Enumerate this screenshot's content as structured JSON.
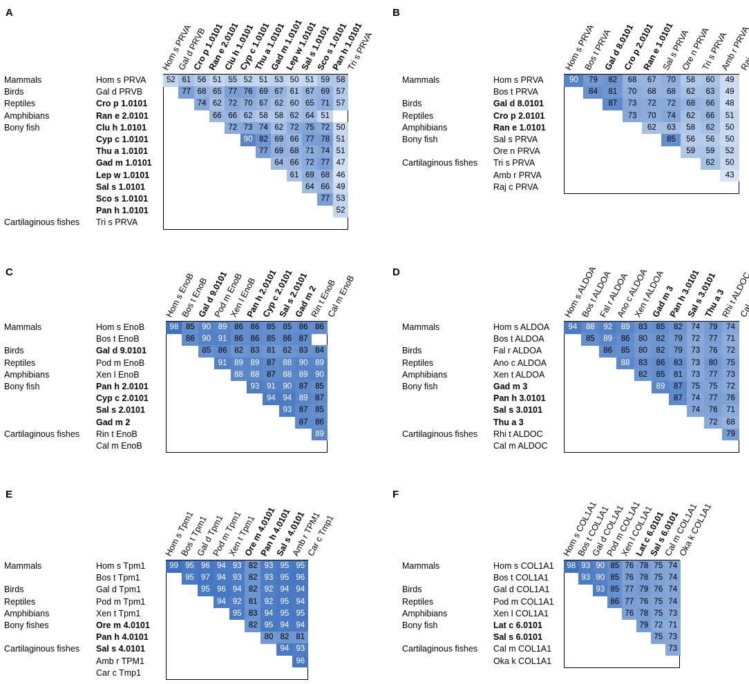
{
  "chart_data": [
    {
      "type": "heatmap",
      "panel": "A",
      "groups": [
        {
          "name": "Mammals",
          "row": 0
        },
        {
          "name": "Birds",
          "row": 1
        },
        {
          "name": "Reptiles",
          "row": 2
        },
        {
          "name": "Amphibians",
          "row": 3
        },
        {
          "name": "Bony fish",
          "row": 4
        },
        {
          "name": "Cartilaginous fishes",
          "row": 12
        }
      ],
      "labels": [
        "Hom s PRVA",
        "Gal d PRVB",
        "Cro p 1.0101",
        "Ran e 2.0101",
        "Clu h 1.0101",
        "Cyp c 1.0101",
        "Thu a 1.0101",
        "Gad m 1.0101",
        "Lep w 1.0101",
        "Sal s 1.0101",
        "Sco s 1.0101",
        "Pan h 1.0101",
        "Tri s PRVA"
      ],
      "bold": [
        false,
        false,
        true,
        true,
        true,
        true,
        true,
        true,
        true,
        true,
        true,
        true,
        false
      ],
      "values": [
        [
          52,
          61,
          56,
          51,
          55,
          52,
          51,
          53,
          50,
          51,
          59,
          58
        ],
        [
          77,
          68,
          65,
          77,
          76,
          69,
          67,
          61,
          67,
          69,
          57
        ],
        [
          74,
          62,
          72,
          70,
          67,
          62,
          60,
          65,
          71,
          57
        ],
        [
          66,
          66,
          62,
          58,
          58,
          62,
          64,
          51
        ],
        [
          72,
          73,
          74,
          62,
          72,
          75,
          72,
          50
        ],
        [
          90,
          82,
          69,
          66,
          77,
          78,
          51
        ],
        [
          77,
          69,
          68,
          71,
          74,
          51
        ],
        [
          64,
          66,
          72,
          77,
          47
        ],
        [
          61,
          69,
          68,
          46
        ],
        [
          64,
          66,
          49
        ],
        [
          77,
          53
        ],
        [
          52
        ]
      ]
    },
    {
      "type": "heatmap",
      "panel": "B",
      "groups": [
        {
          "name": "Mammals",
          "row": 0
        },
        {
          "name": "Birds",
          "row": 2
        },
        {
          "name": "Reptiles",
          "row": 3
        },
        {
          "name": "Amphibians",
          "row": 4
        },
        {
          "name": "Bony fish",
          "row": 5
        },
        {
          "name": "Cartilaginous fishes",
          "row": 7
        }
      ],
      "labels": [
        "Hom s PRVA",
        "Bos t PRVA",
        "Gal d 8.0101",
        "Cro p 2.0101",
        "Ran e 1.0101",
        "Sal s PRVA",
        "Ore n PRVA",
        "Tri s PRVA",
        "Amb r PRVA",
        "Raj c PRVA"
      ],
      "bold": [
        false,
        false,
        true,
        true,
        true,
        false,
        false,
        false,
        false,
        false
      ],
      "values": [
        [
          90,
          79,
          82,
          68,
          67,
          70,
          58,
          60,
          49
        ],
        [
          84,
          81,
          70,
          68,
          68,
          62,
          63,
          49
        ],
        [
          87,
          73,
          72,
          72,
          68,
          66,
          48
        ],
        [
          73,
          70,
          74,
          62,
          66,
          51
        ],
        [
          62,
          63,
          58,
          62,
          50
        ],
        [
          85,
          56,
          56,
          50
        ],
        [
          59,
          59,
          52
        ],
        [
          62,
          50
        ],
        [
          43
        ]
      ]
    },
    {
      "type": "heatmap",
      "panel": "C",
      "groups": [
        {
          "name": "Mammals",
          "row": 0
        },
        {
          "name": "Birds",
          "row": 2
        },
        {
          "name": "Reptiles",
          "row": 3
        },
        {
          "name": "Amphibians",
          "row": 4
        },
        {
          "name": "Bony fish",
          "row": 5
        },
        {
          "name": "Cartilaginous fishes",
          "row": 9
        }
      ],
      "labels": [
        "Hom s EnoB",
        "Bos t EnoB",
        "Gal d 9.0101",
        "Pod m EnoB",
        "Xen l EnoB",
        "Pan h 2.0101",
        "Cyp c 2.0101",
        "Sal s 2.0101",
        "Gad m 2",
        "Rin t EnoB",
        "Cal m EnoB"
      ],
      "bold": [
        false,
        false,
        true,
        false,
        false,
        true,
        true,
        true,
        true,
        false,
        false
      ],
      "values": [
        [
          98,
          85,
          90,
          89,
          86,
          86,
          85,
          85,
          86,
          86
        ],
        [
          86,
          90,
          91,
          86,
          86,
          85,
          86,
          87
        ],
        [
          85,
          86,
          82,
          83,
          81,
          82,
          83,
          84
        ],
        [
          91,
          89,
          89,
          87,
          88,
          90,
          89
        ],
        [
          88,
          88,
          87,
          88,
          89,
          90
        ],
        [
          93,
          91,
          90,
          87,
          85
        ],
        [
          94,
          94,
          89,
          87
        ],
        [
          93,
          87,
          85
        ],
        [
          87,
          86
        ],
        [
          89
        ]
      ]
    },
    {
      "type": "heatmap",
      "panel": "D",
      "groups": [
        {
          "name": "Mammals",
          "row": 0
        },
        {
          "name": "Birds",
          "row": 2
        },
        {
          "name": "Reptiles",
          "row": 3
        },
        {
          "name": "Amphibians",
          "row": 4
        },
        {
          "name": "Bony fish",
          "row": 5
        },
        {
          "name": "Cartilaginous fishes",
          "row": 9
        }
      ],
      "labels": [
        "Hom s ALDOA",
        "Bos t ALDOA",
        "Fal r ALDOA",
        "Ano c ALDOA",
        "Xen t ALDOA",
        "Gad m 3",
        "Pan h 3.0101",
        "Sal s 3.0101",
        "Thu a 3",
        "Rhi t ALDOC",
        "Cal m ALDOC"
      ],
      "bold": [
        false,
        false,
        false,
        false,
        false,
        true,
        true,
        true,
        true,
        false,
        false
      ],
      "values": [
        [
          94,
          88,
          92,
          89,
          83,
          85,
          82,
          74,
          79,
          74
        ],
        [
          85,
          89,
          86,
          80,
          82,
          79,
          72,
          77,
          71
        ],
        [
          86,
          85,
          80,
          82,
          79,
          73,
          76,
          72
        ],
        [
          88,
          83,
          86,
          83,
          73,
          80,
          75
        ],
        [
          82,
          85,
          81,
          73,
          77,
          73
        ],
        [
          89,
          87,
          75,
          75,
          72
        ],
        [
          87,
          74,
          77,
          76
        ],
        [
          74,
          76,
          71
        ],
        [
          72,
          68
        ],
        [
          79
        ]
      ]
    },
    {
      "type": "heatmap",
      "panel": "E",
      "groups": [
        {
          "name": "Mammals",
          "row": 0
        },
        {
          "name": "Birds",
          "row": 2
        },
        {
          "name": "Reptiles",
          "row": 3
        },
        {
          "name": "Amphibians",
          "row": 4
        },
        {
          "name": "Bony fishes",
          "row": 5
        },
        {
          "name": "Cartilaginous fishes",
          "row": 7
        }
      ],
      "labels": [
        "Hom s Tpm1",
        "Bos t Tpm1",
        "Gal d Tpm1",
        "Pod m Tpm1",
        "Xen t Tpm1",
        "Ore m 4.0101",
        "Pan h 4.0101",
        "Sal s 4.0101",
        "Amb r TPM1",
        "Car c Tmp1"
      ],
      "bold": [
        false,
        false,
        false,
        false,
        false,
        true,
        true,
        true,
        false,
        false
      ],
      "values": [
        [
          99,
          95,
          96,
          94,
          93,
          82,
          93,
          95,
          95
        ],
        [
          95,
          97,
          94,
          93,
          82,
          93,
          95,
          96
        ],
        [
          95,
          96,
          94,
          82,
          92,
          94,
          94
        ],
        [
          94,
          92,
          81,
          92,
          95,
          94
        ],
        [
          95,
          83,
          94,
          95,
          95
        ],
        [
          82,
          95,
          94,
          94
        ],
        [
          80,
          82,
          81
        ],
        [
          94,
          93
        ],
        [
          96
        ]
      ]
    },
    {
      "type": "heatmap",
      "panel": "F",
      "groups": [
        {
          "name": "Mammals",
          "row": 0
        },
        {
          "name": "Birds",
          "row": 2
        },
        {
          "name": "Reptiles",
          "row": 3
        },
        {
          "name": "Amphibians",
          "row": 4
        },
        {
          "name": "Bony fish",
          "row": 5
        },
        {
          "name": "Cartilaginous fishes",
          "row": 7
        }
      ],
      "labels": [
        "Hom s COL1A1",
        "Bos t COL1A1",
        "Gal d COL1A1",
        "Pod m COL1A1",
        "Xen l COL1A1",
        "Lat c 6.0101",
        "Sal s 6.0101",
        "Cal m COL1A1",
        "Oka k COL1A1"
      ],
      "bold": [
        false,
        false,
        false,
        false,
        false,
        true,
        true,
        false,
        false
      ],
      "values": [
        [
          98,
          93,
          90,
          85,
          76,
          78,
          75,
          74
        ],
        [
          93,
          90,
          85,
          76,
          78,
          75,
          74
        ],
        [
          93,
          85,
          77,
          79,
          76,
          74
        ],
        [
          86,
          77,
          76,
          75,
          74
        ],
        [
          76,
          78,
          75,
          73
        ],
        [
          79,
          72,
          71
        ],
        [
          75,
          73
        ],
        [
          73
        ]
      ]
    }
  ]
}
